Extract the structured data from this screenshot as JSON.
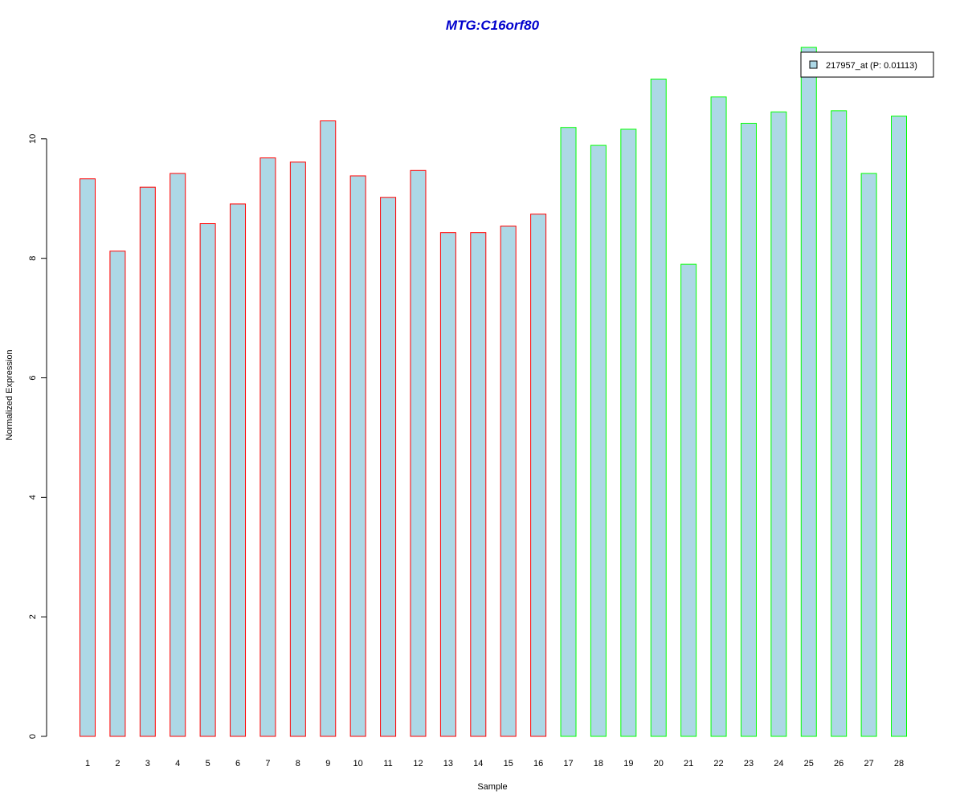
{
  "chart_data": {
    "type": "bar",
    "title": "MTG:C16orf80",
    "xlabel": "Sample",
    "ylabel": "Normalized Expression",
    "categories": [
      "1",
      "2",
      "3",
      "4",
      "5",
      "6",
      "7",
      "8",
      "9",
      "10",
      "11",
      "12",
      "13",
      "14",
      "15",
      "16",
      "17",
      "18",
      "19",
      "20",
      "21",
      "22",
      "23",
      "24",
      "25",
      "26",
      "27",
      "28"
    ],
    "series": [
      {
        "name": "217957_at (P: 0.01113)",
        "values": [
          9.33,
          8.12,
          9.19,
          9.42,
          8.58,
          8.91,
          9.68,
          9.61,
          10.3,
          9.38,
          9.02,
          9.47,
          8.43,
          8.43,
          8.54,
          8.74,
          10.19,
          9.89,
          10.16,
          11.0,
          7.9,
          10.7,
          10.26,
          10.45,
          11.53,
          10.47,
          9.42,
          10.38
        ]
      }
    ],
    "group_of_category": [
      1,
      1,
      1,
      1,
      1,
      1,
      1,
      1,
      1,
      1,
      1,
      1,
      1,
      1,
      1,
      1,
      2,
      2,
      2,
      2,
      2,
      2,
      2,
      2,
      2,
      2,
      2,
      2
    ],
    "yticks": [
      0,
      2,
      4,
      6,
      8,
      10
    ],
    "ylim": [
      0,
      11.53
    ],
    "grid": false,
    "legend_position": "top-right",
    "colors": {
      "bar_fill": "#add8e6",
      "group1_border": "#ff0000",
      "group2_border": "#00ff00",
      "title": "#0000cd",
      "axis": "#000000"
    }
  }
}
